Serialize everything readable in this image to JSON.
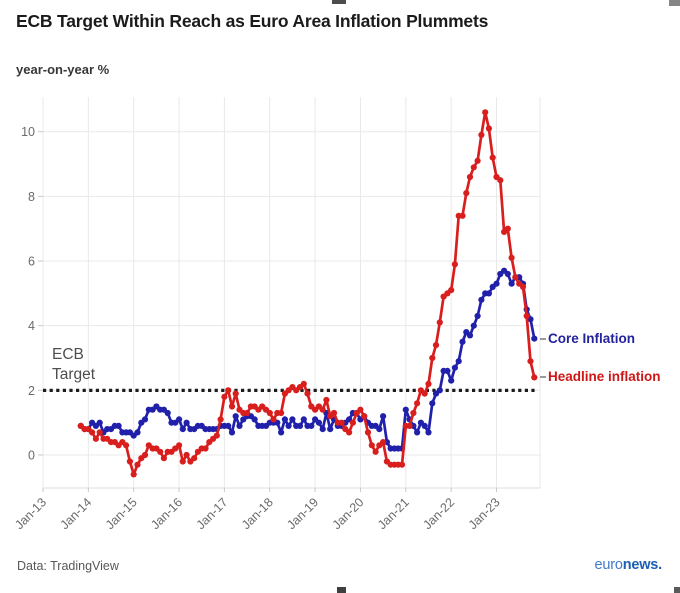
{
  "header": {
    "title": "ECB Target Within Reach as Euro Area Inflation Plummets",
    "subtitle": "year-on-year %"
  },
  "annotations": {
    "ecb_line1": "ECB",
    "ecb_line2": "Target"
  },
  "legend": {
    "core_label": "Core Inflation",
    "core_color": "#23239b",
    "headline_label": "Headline inflation",
    "headline_color": "#ce1616"
  },
  "footer": {
    "source": "Data: TradingView",
    "logo_euro": "euro",
    "logo_euro_color": "#3f7ac7",
    "logo_news": "news.",
    "logo_news_color": "#1c5fb2"
  },
  "chart_data": {
    "type": "line",
    "title": "ECB Target Within Reach as Euro Area Inflation Plummets",
    "ylabel": "year-on-year %",
    "grid": true,
    "gridline_color": "#e9e9e9",
    "baseline_color": "#dcdcdc",
    "tick_color": "#c9c9c9",
    "axis_label_color": "#6b6b6b",
    "ylim": [
      -1,
      11.3
    ],
    "y_ticks": [
      10,
      8,
      6,
      4,
      2,
      0
    ],
    "x_tick_labels": [
      "Jan-13",
      "Jan-14",
      "Jan-15",
      "Jan-16",
      "Jan-17",
      "Jan-18",
      "Jan-19",
      "Jan-20",
      "Jan-21",
      "Jan-22",
      "Jan-23"
    ],
    "x_start": "Nov-2013",
    "x_frequency": "monthly",
    "target_line": {
      "label": "ECB Target",
      "value": 2,
      "style": "dotted",
      "color": "#1c1c1c"
    },
    "series": [
      {
        "name": "Core Inflation",
        "color": "#2020ab",
        "values": [
          0.9,
          0.8,
          0.8,
          1.0,
          0.9,
          1.0,
          0.7,
          0.8,
          0.8,
          0.9,
          0.9,
          0.7,
          0.7,
          0.7,
          0.6,
          0.7,
          1.0,
          1.1,
          1.4,
          1.4,
          1.5,
          1.4,
          1.4,
          1.3,
          1.0,
          1.0,
          1.1,
          0.8,
          1.0,
          0.8,
          0.8,
          0.9,
          0.9,
          0.8,
          0.8,
          0.8,
          0.8,
          0.9,
          0.9,
          0.9,
          0.7,
          1.2,
          0.9,
          1.1,
          1.2,
          1.2,
          1.1,
          0.9,
          0.9,
          0.9,
          1.0,
          1.0,
          1.0,
          0.7,
          1.1,
          0.9,
          1.1,
          0.9,
          0.9,
          1.1,
          0.9,
          0.9,
          1.1,
          1.0,
          0.8,
          1.3,
          0.8,
          1.1,
          0.9,
          0.9,
          1.0,
          1.1,
          1.3,
          1.3,
          1.1,
          1.2,
          1.0,
          0.9,
          0.9,
          0.8,
          1.2,
          0.4,
          0.2,
          0.2,
          0.2,
          0.2,
          1.4,
          1.1,
          0.9,
          0.7,
          1.0,
          0.9,
          0.7,
          1.6,
          1.9,
          2.0,
          2.6,
          2.6,
          2.3,
          2.7,
          2.9,
          3.5,
          3.8,
          3.7,
          4.0,
          4.3,
          4.8,
          5.0,
          5.0,
          5.2,
          5.3,
          5.6,
          5.7,
          5.6,
          5.3,
          5.5,
          5.5,
          5.3,
          4.5,
          4.2,
          3.6
        ]
      },
      {
        "name": "Headline inflation",
        "color": "#d91e1e",
        "values": [
          0.9,
          0.8,
          0.8,
          0.7,
          0.5,
          0.7,
          0.5,
          0.5,
          0.4,
          0.4,
          0.3,
          0.4,
          0.3,
          -0.2,
          -0.6,
          -0.3,
          -0.1,
          0.0,
          0.3,
          0.2,
          0.2,
          0.1,
          -0.1,
          0.1,
          0.1,
          0.2,
          0.3,
          -0.2,
          0.0,
          -0.2,
          -0.1,
          0.1,
          0.2,
          0.2,
          0.4,
          0.5,
          0.6,
          1.1,
          1.8,
          2.0,
          1.5,
          1.9,
          1.4,
          1.3,
          1.3,
          1.5,
          1.5,
          1.4,
          1.5,
          1.4,
          1.3,
          1.1,
          1.3,
          1.3,
          1.9,
          2.0,
          2.1,
          2.0,
          2.1,
          2.2,
          1.9,
          1.5,
          1.4,
          1.5,
          1.4,
          1.7,
          1.2,
          1.3,
          1.0,
          1.0,
          0.8,
          0.7,
          1.0,
          1.3,
          1.4,
          1.2,
          0.7,
          0.3,
          0.1,
          0.3,
          0.4,
          -0.2,
          -0.3,
          -0.3,
          -0.3,
          -0.3,
          0.9,
          0.9,
          1.3,
          1.6,
          2.0,
          1.9,
          2.2,
          3.0,
          3.4,
          4.1,
          4.9,
          5.0,
          5.1,
          5.9,
          7.4,
          7.4,
          8.1,
          8.6,
          8.9,
          9.1,
          9.9,
          10.6,
          10.1,
          9.2,
          8.6,
          8.5,
          6.9,
          7.0,
          6.1,
          5.5,
          5.3,
          5.2,
          4.3,
          2.9,
          2.4
        ]
      }
    ]
  }
}
